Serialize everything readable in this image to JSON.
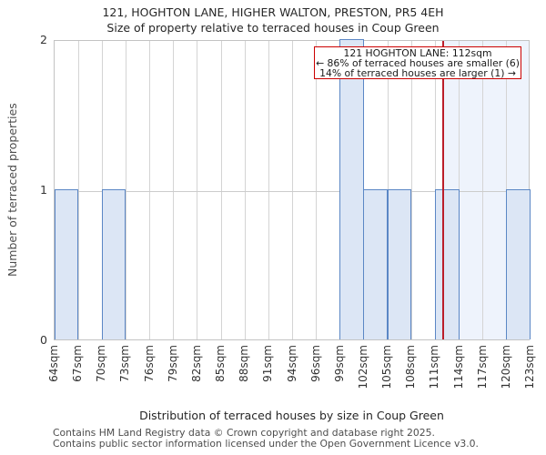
{
  "title_line1": "121, HOGHTON LANE, HIGHER WALTON, PRESTON, PR5 4EH",
  "title_line2": "Size of property relative to terraced houses in Coup Green",
  "y_axis": {
    "label": "Number of terraced properties",
    "ticks": [
      "2",
      "1",
      "0"
    ]
  },
  "x_axis": {
    "label": "Distribution of terraced houses by size in Coup Green",
    "tick_labels": [
      "64sqm",
      "67sqm",
      "70sqm",
      "73sqm",
      "76sqm",
      "79sqm",
      "82sqm",
      "85sqm",
      "88sqm",
      "91sqm",
      "94sqm",
      "96sqm",
      "99sqm",
      "102sqm",
      "105sqm",
      "108sqm",
      "111sqm",
      "114sqm",
      "117sqm",
      "120sqm",
      "123sqm"
    ]
  },
  "annotation": {
    "line1": "121 HOGHTON LANE: 112sqm",
    "line2": "← 86% of terraced houses are smaller (6)",
    "line3": "14% of terraced houses are larger (1) →"
  },
  "footer": {
    "line1": "Contains HM Land Registry data © Crown copyright and database right 2025.",
    "line2": "Contains public sector information licensed under the Open Government Licence v3.0."
  },
  "chart_data": {
    "type": "bar",
    "title": "121, HOGHTON LANE, HIGHER WALTON, PRESTON, PR5 4EH - Size of property relative to terraced houses in Coup Green",
    "xlabel": "Distribution of terraced houses by size in Coup Green",
    "ylabel": "Number of terraced properties",
    "bin_edges_sqm": [
      64,
      67,
      70,
      73,
      76,
      79,
      82,
      85,
      88,
      91,
      94,
      96,
      99,
      102,
      105,
      108,
      111,
      114,
      117,
      120,
      123
    ],
    "categories": [
      "64-67",
      "67-70",
      "70-73",
      "73-76",
      "76-79",
      "79-82",
      "82-85",
      "85-88",
      "88-91",
      "91-94",
      "94-96",
      "96-99",
      "99-102",
      "102-105",
      "105-108",
      "108-111",
      "111-114",
      "114-117",
      "117-120",
      "120-123"
    ],
    "values": [
      1,
      0,
      1,
      0,
      0,
      0,
      0,
      0,
      0,
      0,
      0,
      0,
      2,
      1,
      1,
      0,
      1,
      0,
      0,
      1
    ],
    "ylim": [
      0,
      2
    ],
    "yticks": [
      0,
      1,
      2
    ],
    "grid": true,
    "marker_value_sqm": 112,
    "marker_lower_tick_index": 16,
    "highlight_from_marker_to_right_edge": true,
    "smaller_count": 6,
    "larger_count": 1,
    "smaller_pct": 86,
    "larger_pct": 14
  },
  "colors": {
    "bar_fill": "#dce6f5",
    "bar_border": "#5b87c5",
    "highlight_tint": "#eef3fc",
    "marker_line": "#bb1e2a",
    "annotation_border": "#cc0000",
    "gridline": "#d4d4d4"
  }
}
